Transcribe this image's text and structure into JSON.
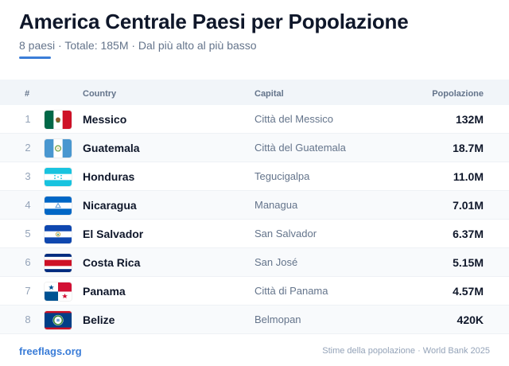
{
  "header": {
    "title": "America Centrale Paesi per Popolazione",
    "subtitle": "8 paesi · Totale: 185M · Dal più alto al più basso",
    "accent_color": "#3b7dd8"
  },
  "table": {
    "columns": {
      "num": "#",
      "country": "Country",
      "capital": "Capital",
      "population": "Popolazione"
    },
    "rows": [
      {
        "rank": "1",
        "flag_icon": "mexico-flag-icon",
        "country": "Messico",
        "capital": "Città del Messico",
        "population": "132M"
      },
      {
        "rank": "2",
        "flag_icon": "guatemala-flag-icon",
        "country": "Guatemala",
        "capital": "Città del Guatemala",
        "population": "18.7M"
      },
      {
        "rank": "3",
        "flag_icon": "honduras-flag-icon",
        "country": "Honduras",
        "capital": "Tegucigalpa",
        "population": "11.0M"
      },
      {
        "rank": "4",
        "flag_icon": "nicaragua-flag-icon",
        "country": "Nicaragua",
        "capital": "Managua",
        "population": "7.01M"
      },
      {
        "rank": "5",
        "flag_icon": "el-salvador-flag-icon",
        "country": "El Salvador",
        "capital": "San Salvador",
        "population": "6.37M"
      },
      {
        "rank": "6",
        "flag_icon": "costa-rica-flag-icon",
        "country": "Costa Rica",
        "capital": "San José",
        "population": "5.15M"
      },
      {
        "rank": "7",
        "flag_icon": "panama-flag-icon",
        "country": "Panama",
        "capital": "Città di Panama",
        "population": "4.57M"
      },
      {
        "rank": "8",
        "flag_icon": "belize-flag-icon",
        "country": "Belize",
        "capital": "Belmopan",
        "population": "420K"
      }
    ]
  },
  "footer": {
    "brand": "freeflags.org",
    "source": "Stime della popolazione · World Bank 2025"
  }
}
